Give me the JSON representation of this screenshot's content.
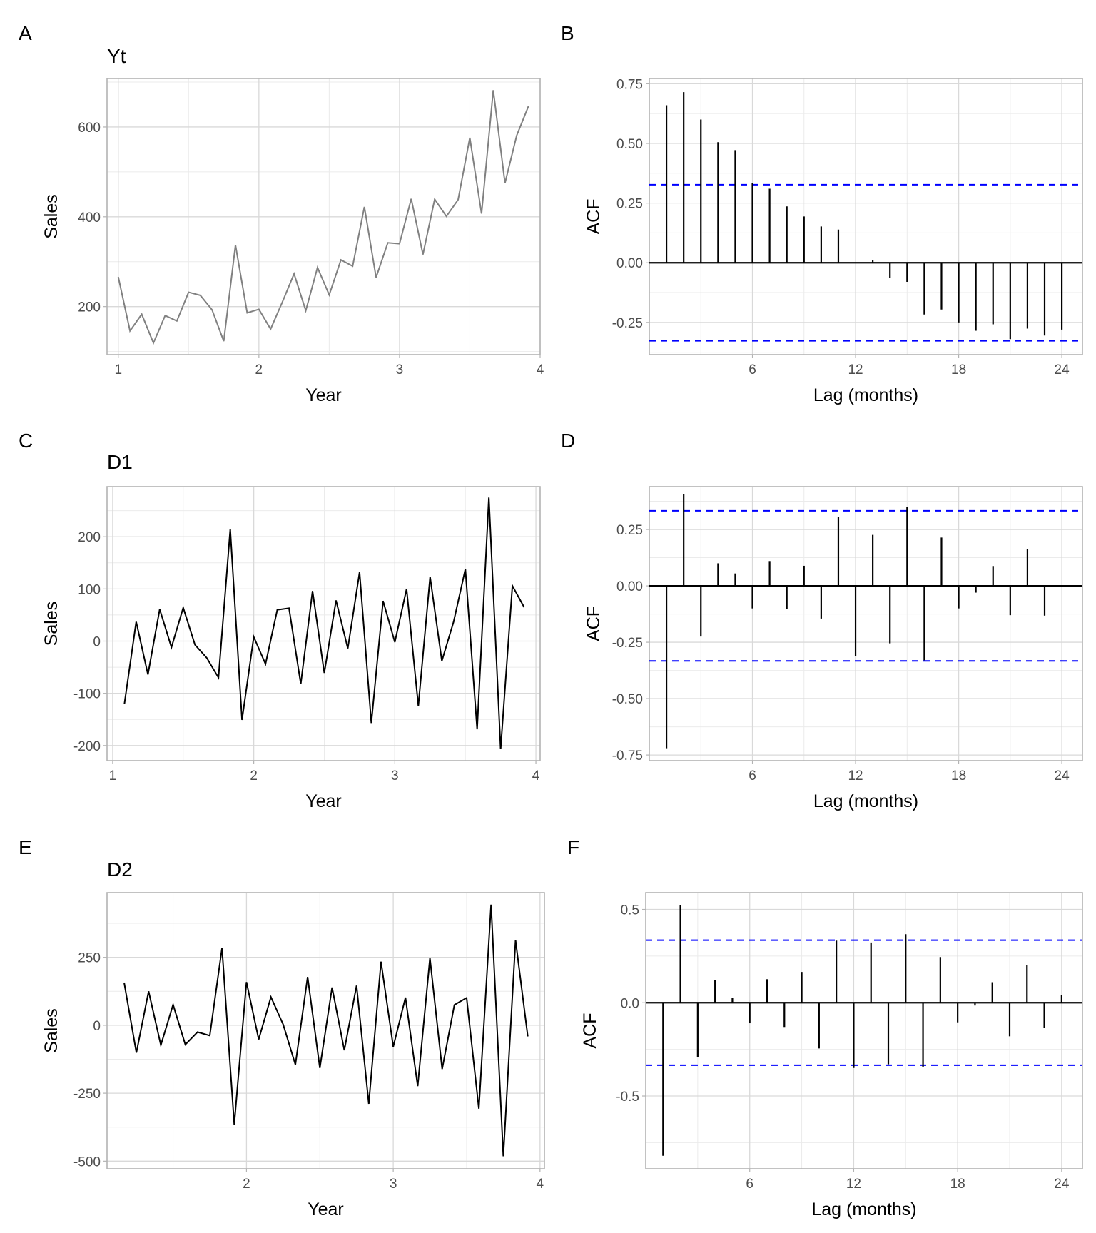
{
  "figure": {
    "panels": [
      "A",
      "B",
      "C",
      "D",
      "E",
      "F"
    ]
  },
  "chart_data": [
    {
      "panel": "A",
      "type": "line",
      "title": "Yt",
      "xlabel": "Year",
      "ylabel": "Sales",
      "line_color": "#808080",
      "xlim": [
        0.92,
        4.0
      ],
      "ylim": [
        93,
        708
      ],
      "xticks": [
        1,
        2,
        3,
        4
      ],
      "xtick_labels": [
        "1",
        "2",
        "3",
        "4"
      ],
      "yticks": [
        200,
        400,
        600
      ],
      "ytick_labels": [
        "200",
        "400",
        "600"
      ],
      "x_start": 1,
      "x_step": 0.0833333,
      "values": [
        266,
        146,
        183,
        119,
        180,
        168,
        232,
        225,
        193,
        123,
        337,
        186,
        194,
        150,
        210,
        273,
        191,
        287,
        226,
        304,
        290,
        422,
        265,
        342,
        340,
        440,
        316,
        439,
        401,
        438,
        576,
        407,
        682,
        475,
        581,
        646
      ],
      "grid": true
    },
    {
      "panel": "B",
      "type": "bar",
      "subtype": "acf",
      "title": "",
      "xlabel": "Lag (months)",
      "ylabel": "ACF",
      "xlim": [
        0,
        25.2
      ],
      "ylim": [
        -0.385,
        0.772
      ],
      "xticks": [
        6,
        12,
        18,
        24
      ],
      "xtick_labels": [
        "6",
        "12",
        "18",
        "24"
      ],
      "yticks": [
        -0.25,
        0,
        0.25,
        0.5,
        0.75
      ],
      "ytick_labels": [
        "-0.25",
        "0.00",
        "0.25",
        "0.50",
        "0.75"
      ],
      "lags": [
        1,
        2,
        3,
        4,
        5,
        6,
        7,
        8,
        9,
        10,
        11,
        12,
        13,
        14,
        15,
        16,
        17,
        18,
        19,
        20,
        21,
        22,
        23,
        24
      ],
      "values": [
        0.66,
        0.715,
        0.6,
        0.505,
        0.472,
        0.333,
        0.31,
        0.236,
        0.194,
        0.152,
        0.139,
        0.0,
        0.01,
        -0.065,
        -0.08,
        -0.217,
        -0.196,
        -0.25,
        -0.285,
        -0.258,
        -0.32,
        -0.276,
        -0.305,
        -0.28
      ],
      "conf_bound": 0.327,
      "conf_color": "#0000ff",
      "grid": true
    },
    {
      "panel": "C",
      "type": "line",
      "title": "D1",
      "xlabel": "Year",
      "ylabel": "Sales",
      "line_color": "#000000",
      "xlim": [
        0.96,
        4.03
      ],
      "ylim": [
        -229,
        296
      ],
      "xticks": [
        1,
        2,
        3,
        4
      ],
      "xtick_labels": [
        "1",
        "2",
        "3",
        "4"
      ],
      "yticks": [
        -200,
        -100,
        0,
        100,
        200
      ],
      "ytick_labels": [
        "-200",
        "-100",
        "0",
        "100",
        "200"
      ],
      "x_start": 1.0833333,
      "x_step": 0.0833333,
      "values": [
        -120,
        37,
        -64,
        61,
        -12,
        64,
        -7,
        -32,
        -70,
        214,
        -151,
        8,
        -44,
        60,
        63,
        -82,
        96,
        -61,
        78,
        -14,
        132,
        -157,
        77,
        -2,
        100,
        -124,
        123,
        -38,
        37,
        138,
        -169,
        275,
        -207,
        106,
        65
      ],
      "grid": true
    },
    {
      "panel": "D",
      "type": "bar",
      "subtype": "acf",
      "title": "",
      "xlabel": "Lag (months)",
      "ylabel": "ACF",
      "xlim": [
        0,
        25.2
      ],
      "ylim": [
        -0.775,
        0.44
      ],
      "xticks": [
        6,
        12,
        18,
        24
      ],
      "xtick_labels": [
        "6",
        "12",
        "18",
        "24"
      ],
      "yticks": [
        -0.75,
        -0.5,
        -0.25,
        0,
        0.25
      ],
      "ytick_labels": [
        "-0.75",
        "-0.50",
        "-0.25",
        "0.00",
        "0.25"
      ],
      "lags": [
        1,
        2,
        3,
        4,
        5,
        6,
        7,
        8,
        9,
        10,
        11,
        12,
        13,
        14,
        15,
        16,
        17,
        18,
        19,
        20,
        21,
        22,
        23,
        24
      ],
      "values": [
        -0.72,
        0.405,
        -0.225,
        0.1,
        0.055,
        -0.1,
        0.11,
        -0.103,
        0.089,
        -0.145,
        0.307,
        -0.31,
        0.226,
        -0.255,
        0.35,
        -0.33,
        0.214,
        -0.1,
        -0.03,
        0.088,
        -0.13,
        0.162,
        -0.132,
        0.0
      ],
      "conf_bound": 0.333,
      "conf_color": "#0000ff",
      "grid": true
    },
    {
      "panel": "E",
      "type": "line",
      "title": "D2",
      "xlabel": "Year",
      "ylabel": "Sales",
      "line_color": "#000000",
      "xlim": [
        1.05,
        4.03
      ],
      "ylim": [
        -528,
        488
      ],
      "xticks": [
        2,
        3,
        4
      ],
      "xtick_labels": [
        "2",
        "3",
        "4"
      ],
      "yticks": [
        -500,
        -250,
        0,
        250
      ],
      "ytick_labels": [
        "-500",
        "-250",
        "0",
        "250"
      ],
      "x_start": 1.1666667,
      "x_step": 0.0833333,
      "values": [
        157,
        -101,
        125,
        -73,
        76,
        -71,
        -25,
        -38,
        284,
        -365,
        159,
        -52,
        104,
        3,
        -145,
        178,
        -157,
        139,
        -92,
        146,
        -289,
        234,
        -79,
        102,
        -224,
        247,
        -161,
        75,
        101,
        -307,
        444,
        -482,
        313,
        -41
      ],
      "grid": true
    },
    {
      "panel": "F",
      "type": "bar",
      "subtype": "acf",
      "title": "",
      "xlabel": "Lag (months)",
      "ylabel": "ACF",
      "xlim": [
        0,
        25.2
      ],
      "ylim": [
        -0.89,
        0.59
      ],
      "xticks": [
        6,
        12,
        18,
        24
      ],
      "xtick_labels": [
        "6",
        "12",
        "18",
        "24"
      ],
      "yticks": [
        -0.5,
        0,
        0.5
      ],
      "ytick_labels": [
        "-0.5",
        "0.0",
        "0.5"
      ],
      "lags": [
        1,
        2,
        3,
        4,
        5,
        6,
        7,
        8,
        9,
        10,
        11,
        12,
        13,
        14,
        15,
        16,
        17,
        18,
        19,
        20,
        21,
        22,
        23,
        24
      ],
      "values": [
        -0.82,
        0.525,
        -0.29,
        0.122,
        0.026,
        -0.11,
        0.126,
        -0.13,
        0.165,
        -0.245,
        0.333,
        -0.35,
        0.323,
        -0.33,
        0.367,
        -0.345,
        0.245,
        -0.105,
        -0.015,
        0.11,
        -0.18,
        0.2,
        -0.135,
        0.04
      ],
      "conf_bound": 0.335,
      "conf_color": "#0000ff",
      "grid": true
    }
  ]
}
